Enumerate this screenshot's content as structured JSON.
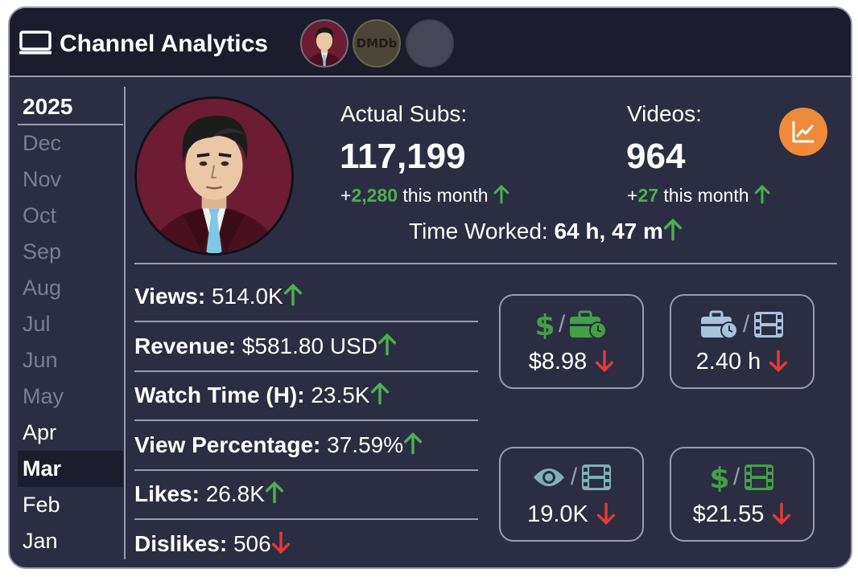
{
  "header": {
    "title": "Channel Analytics",
    "logo_text": "DMDb"
  },
  "sidebar": {
    "year": "2025",
    "months": [
      {
        "label": "Dec",
        "state": "inactive"
      },
      {
        "label": "Nov",
        "state": "inactive"
      },
      {
        "label": "Oct",
        "state": "inactive"
      },
      {
        "label": "Sep",
        "state": "inactive"
      },
      {
        "label": "Aug",
        "state": "inactive"
      },
      {
        "label": "Jul",
        "state": "inactive"
      },
      {
        "label": "Jun",
        "state": "inactive"
      },
      {
        "label": "May",
        "state": "inactive"
      },
      {
        "label": "Apr",
        "state": "active"
      },
      {
        "label": "Mar",
        "state": "selected"
      },
      {
        "label": "Feb",
        "state": "active"
      },
      {
        "label": "Jan",
        "state": "active"
      }
    ]
  },
  "summary": {
    "subs_label": "Actual Subs:",
    "subs_value": "117,199",
    "subs_delta_prefix": "+",
    "subs_delta": "2,280",
    "subs_delta_suffix": "this month",
    "videos_label": "Videos:",
    "videos_value": "964",
    "videos_delta_prefix": "+",
    "videos_delta": "27",
    "videos_delta_suffix": "this month",
    "time_worked_label": "Time Worked:",
    "time_worked_value": "64 h, 47 m"
  },
  "stats": [
    {
      "label": "Views:",
      "value": "514.0K",
      "trend": "up"
    },
    {
      "label": "Revenue:",
      "value": "$581.80 USD",
      "trend": "up"
    },
    {
      "label": "Watch Time (H):",
      "value": "23.5K",
      "trend": "up"
    },
    {
      "label": "View Percentage:",
      "value": "37.59%",
      "trend": "up"
    },
    {
      "label": "Likes:",
      "value": "26.8K",
      "trend": "up"
    },
    {
      "label": "Dislikes:",
      "value": "506",
      "trend": "down"
    }
  ],
  "ratios": [
    {
      "icons": [
        "dollar-icon",
        "briefcase-clock-icon"
      ],
      "slash": "/",
      "value": "$8.98",
      "trend": "down"
    },
    {
      "icons": [
        "briefcase-clock-icon",
        "film-icon"
      ],
      "slash": "/",
      "value": "2.40 h",
      "trend": "down"
    },
    {
      "icons": [
        "eye-icon",
        "film-icon"
      ],
      "slash": "/",
      "value": "19.0K",
      "trend": "down"
    },
    {
      "icons": [
        "dollar-icon",
        "film-icon"
      ],
      "slash": "/",
      "value": "$21.55",
      "trend": "down"
    }
  ],
  "colors": {
    "background": "#2b2d42",
    "header": "#1b1c2c",
    "border": "#9a9cab",
    "up": "#4caf50",
    "down": "#e53935",
    "accent": "#ee8a3a",
    "green_icon": "#43a047",
    "blue_icon": "#a8c4dd",
    "teal_icon": "#82aeb8",
    "inactive_month": "#7d7e8c"
  }
}
